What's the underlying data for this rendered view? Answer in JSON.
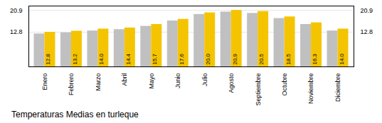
{
  "chart_data": {
    "type": "bar",
    "title": "Temperaturas Medias en turleque",
    "categories": [
      "Enero",
      "Febrero",
      "Marzo",
      "Abril",
      "Mayo",
      "Junio",
      "Julio",
      "Agosto",
      "Septiembre",
      "Octubre",
      "Noviembre",
      "Diciembre"
    ],
    "series": [
      {
        "color": "#C0C0C0",
        "values": [
          12.2,
          12.6,
          13.3,
          13.8,
          15.0,
          17.0,
          19.4,
          20.3,
          19.8,
          17.9,
          15.7,
          13.3
        ]
      },
      {
        "color": "#F5C400",
        "values": [
          12.8,
          13.2,
          14.0,
          14.4,
          15.7,
          17.6,
          20.0,
          20.9,
          20.5,
          18.5,
          16.3,
          14.0
        ],
        "data_labels": true,
        "value_labels": [
          "12.8",
          "13.2",
          "14.0",
          "14.4",
          "15.7",
          "17.6",
          "20.0",
          "20.9",
          "20.5",
          "18.5",
          "16.3",
          "14.0"
        ]
      }
    ],
    "ylim": [
      0,
      22.5
    ],
    "yticks": [
      12.8,
      20.9
    ],
    "grid": true
  }
}
